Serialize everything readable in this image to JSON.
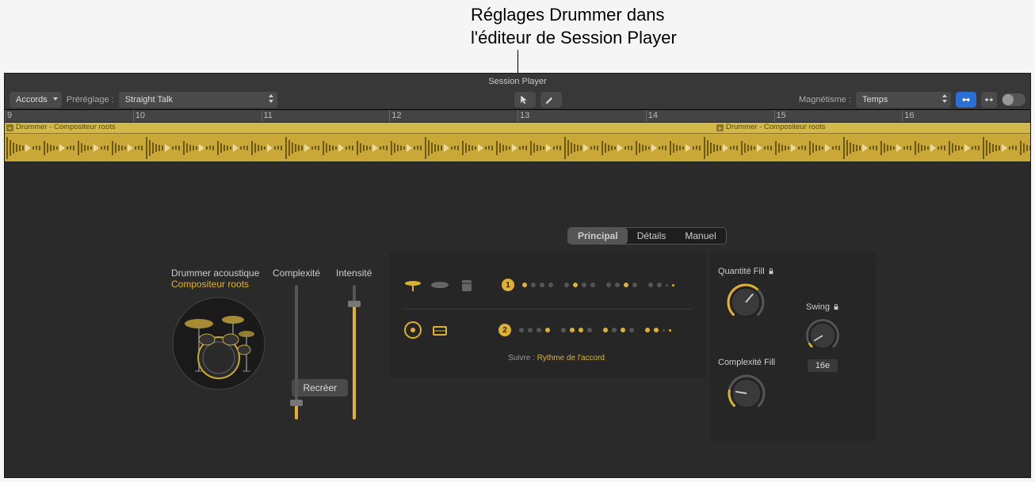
{
  "annotation": "Réglages Drummer dans\nl'éditeur de Session Player",
  "titlebar": "Session Player",
  "toolbar": {
    "chords_label": "Accords",
    "preset_prefix": "Préréglage :",
    "preset_name": "Straight Talk",
    "snap_prefix": "Magnétisme :",
    "snap_value": "Temps"
  },
  "ruler": {
    "start": 9,
    "end": 17,
    "labels": [
      "9",
      "10",
      "11",
      "12",
      "13",
      "14",
      "15",
      "16"
    ]
  },
  "regions": {
    "label": "Drummer - Compositeur roots"
  },
  "tabs": {
    "principal": "Principal",
    "details": "Détails",
    "manual": "Manuel"
  },
  "drummer": {
    "title": "Drummer acoustique",
    "subtitle": "Compositeur roots",
    "recreate": "Recréer",
    "complexity_label": "Complexité",
    "intensity_label": "Intensité",
    "complexity_value": 0.15,
    "intensity_value": 0.88
  },
  "patterns": {
    "row1": {
      "badge": "1",
      "dots": [
        1,
        0,
        0,
        0,
        0,
        1,
        0,
        0,
        0,
        0,
        1,
        0,
        0,
        0,
        0,
        1
      ]
    },
    "row2": {
      "badge": "2",
      "dots": [
        0,
        0,
        0,
        1,
        0,
        1,
        1,
        0,
        1,
        0,
        1,
        0,
        1,
        1,
        0,
        1
      ]
    },
    "follow_prefix": "Suivre :",
    "follow_value": "Rythme de l'accord"
  },
  "knobs": {
    "fill_qty_label": "Quantité Fill",
    "fill_qty_value": 0.65,
    "fill_cx_label": "Complexité Fill",
    "fill_cx_value": 0.2,
    "swing_label": "Swing",
    "swing_value": 0.05,
    "swing_display": "16e"
  },
  "colors": {
    "accent": "#e0b030",
    "region": "#c9a838",
    "bg_dark": "#262626"
  }
}
